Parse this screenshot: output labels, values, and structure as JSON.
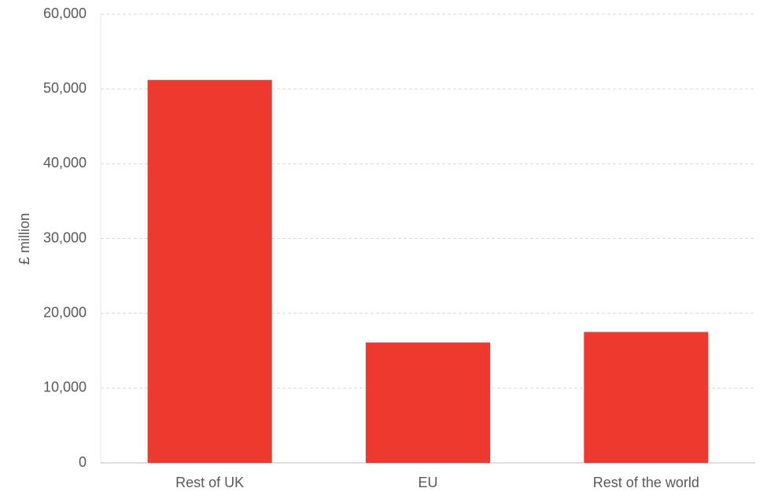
{
  "chart_data": {
    "type": "bar",
    "y_label": "£ million",
    "categories": [
      "Rest of UK",
      "EU",
      "Rest of the world"
    ],
    "values": [
      51200,
      16100,
      17500
    ],
    "color": "#ee3a2e",
    "ylim": [
      0,
      60000
    ],
    "yticks": [
      0,
      {
        "value": 10000,
        "label": "10,000"
      },
      {
        "value": 20000,
        "label": "20,000"
      },
      {
        "value": 30000,
        "label": "30,000"
      },
      {
        "value": 40000,
        "label": "40,000"
      },
      {
        "value": 50000,
        "label": "50,000"
      },
      {
        "value": 60000,
        "label": "60,000"
      }
    ],
    "grid": true
  }
}
